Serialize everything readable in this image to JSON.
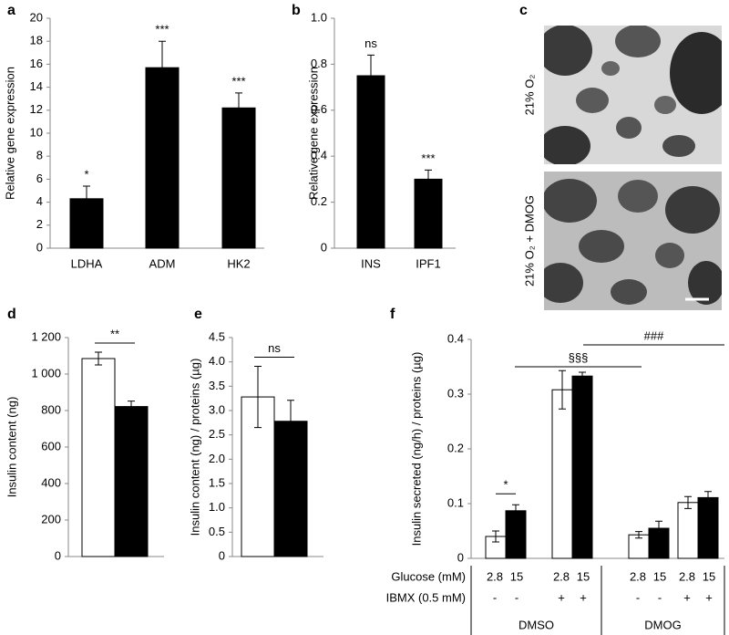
{
  "chart_data": [
    {
      "panel": "a",
      "type": "bar",
      "ylabel": "Relative gene expression",
      "categories": [
        "LDHA",
        "ADM",
        "HK2"
      ],
      "values": [
        4.3,
        15.7,
        12.2
      ],
      "errors": [
        1.1,
        2.3,
        1.3
      ],
      "annotations": [
        "*",
        "***",
        "***"
      ],
      "color": "#000000",
      "ylim": [
        0,
        20
      ],
      "yticks": [
        0,
        2,
        4,
        6,
        8,
        10,
        12,
        14,
        16,
        18,
        20
      ]
    },
    {
      "panel": "b",
      "type": "bar",
      "ylabel": "Relative gene expression",
      "categories": [
        "INS",
        "IPF1"
      ],
      "values": [
        0.75,
        0.3
      ],
      "errors": [
        0.09,
        0.04
      ],
      "annotations": [
        "ns",
        "***"
      ],
      "color": "#000000",
      "ylim": [
        0,
        1
      ],
      "yticks": [
        0,
        0.2,
        0.4,
        0.6,
        0.8,
        {
          "value": 1,
          "label": "1.0"
        }
      ]
    },
    {
      "panel": "c",
      "type": "image",
      "captions": [
        "21% O₂",
        "21% O₂ + DMOG"
      ]
    },
    {
      "panel": "d",
      "type": "bar",
      "ylabel": "Insulin content (ng)",
      "values": [
        1085,
        822
      ],
      "errors": [
        35,
        30
      ],
      "colors": [
        "#ffffff",
        "#000000"
      ],
      "annotations": [
        "**"
      ],
      "ylim": [
        0,
        1200
      ],
      "yticks": [
        0,
        200,
        400,
        600,
        800,
        {
          "value": 1000,
          "label": "1 000"
        },
        {
          "value": 1200,
          "label": "1 200"
        }
      ]
    },
    {
      "panel": "e",
      "type": "bar",
      "ylabel": "Insulin content (ng) / proteins (µg)",
      "values": [
        3.28,
        2.78
      ],
      "errors": [
        0.63,
        0.43
      ],
      "colors": [
        "#ffffff",
        "#000000"
      ],
      "annotations": [
        "ns"
      ],
      "ylim": [
        0,
        4.5
      ],
      "yticks": [
        0,
        0.5,
        {
          "value": 1,
          "label": "1.0"
        },
        1.5,
        {
          "value": 2,
          "label": "2.0"
        },
        2.5,
        {
          "value": 3,
          "label": "3.0"
        },
        3.5,
        {
          "value": 4,
          "label": "4.0"
        },
        4.5
      ]
    },
    {
      "panel": "f",
      "type": "grouped-bar",
      "ylabel": "Insulin secreted (ng/h) / proteins (µg)",
      "series": [
        {
          "color": "#ffffff",
          "values": [
            0.04,
            0.308,
            0.043,
            0.102
          ],
          "errors": [
            0.01,
            0.035,
            0.006,
            0.011
          ]
        },
        {
          "color": "#000000",
          "values": [
            0.087,
            0.333,
            0.055,
            0.111
          ],
          "errors": [
            0.011,
            0.007,
            0.013,
            0.011
          ]
        }
      ],
      "ylim": [
        0,
        0.4
      ],
      "yticks": [
        0,
        0.1,
        0.2,
        0.3,
        0.4
      ],
      "annotations": [
        "*",
        "§§§",
        "###"
      ],
      "rows": [
        {
          "label": "Glucose (mM)",
          "cells": [
            "2.8",
            "15",
            "2.8",
            "15",
            "2.8",
            "15",
            "2.8",
            "15"
          ]
        },
        {
          "label": "IBMX (0.5 mM)",
          "cells": [
            "-",
            "-",
            "+",
            "+",
            "-",
            "-",
            "+",
            "+"
          ]
        }
      ],
      "groups": [
        "DMSO",
        "DMOG"
      ]
    }
  ]
}
